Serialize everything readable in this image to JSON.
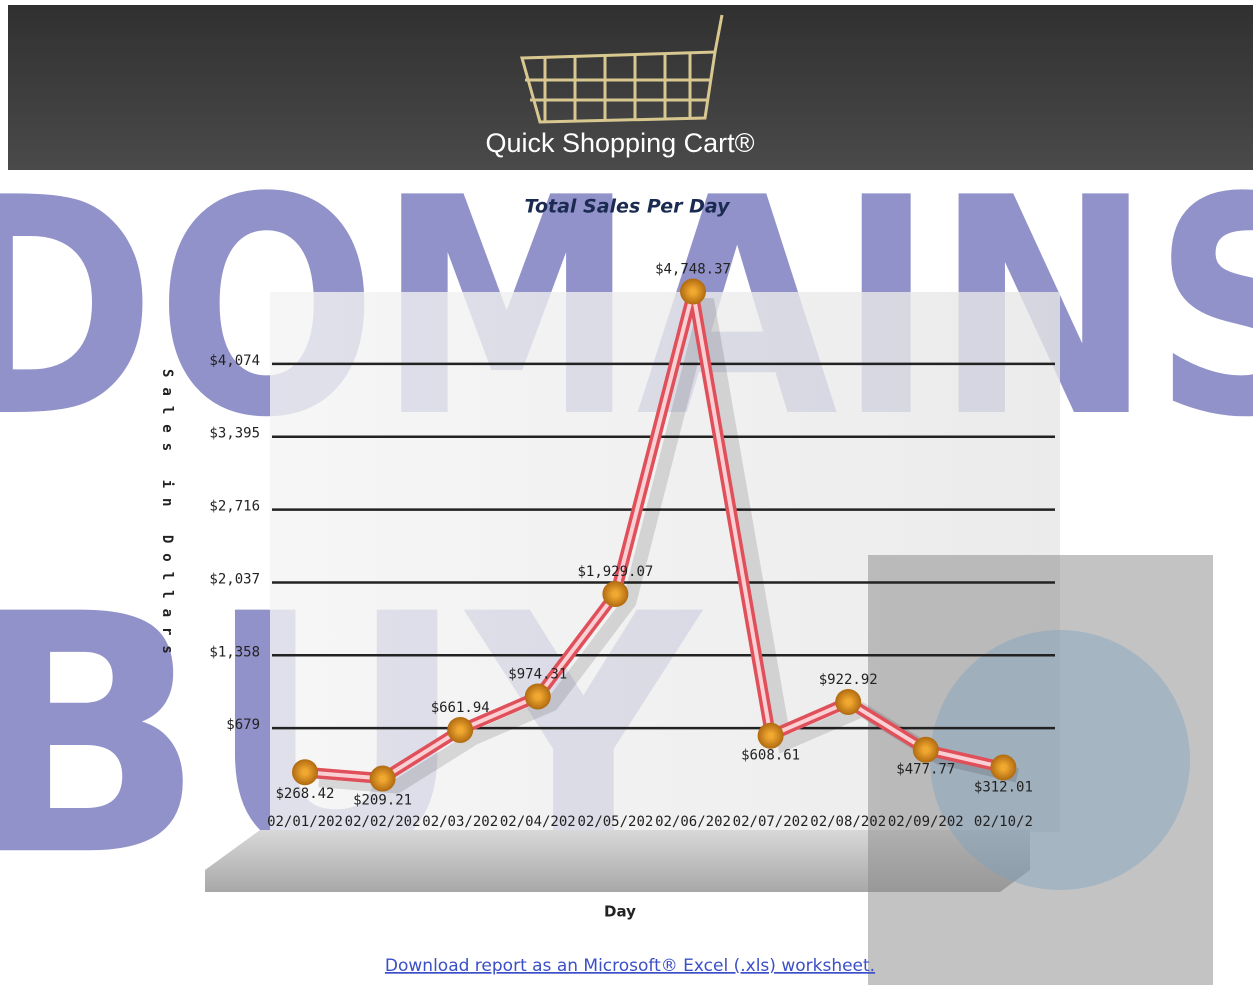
{
  "header": {
    "brand": "Quick Shopping Cart®"
  },
  "chart_data": {
    "type": "line",
    "title": "Total Sales Per Day",
    "x_label": "Day",
    "y_label": "Sales in Dollars",
    "categories": [
      "02/01/202",
      "02/02/202",
      "02/03/202",
      "02/04/202",
      "02/05/202",
      "02/06/202",
      "02/07/202",
      "02/08/202",
      "02/09/202",
      "02/10/2"
    ],
    "series": [
      {
        "name": "Total Sales",
        "color": "#e0505a",
        "values": [
          268.42,
          209.21,
          661.94,
          974.31,
          1929.07,
          4748.37,
          608.61,
          922.92,
          477.77,
          312.01
        ],
        "value_labels": [
          "$268.42",
          "$209.21",
          "$661.94",
          "$974.31",
          "$1,929.07",
          "$4,748.37",
          "$608.61",
          "$922.92",
          "$477.77",
          "$312.01"
        ]
      }
    ],
    "ylim": [
      0,
      4800
    ],
    "yticks": [
      {
        "value": 679,
        "label": "$679"
      },
      {
        "value": 1358,
        "label": "$1,358"
      },
      {
        "value": 2037,
        "label": "$2,037"
      },
      {
        "value": 2716,
        "label": "$2,716"
      },
      {
        "value": 3395,
        "label": "$3,395"
      },
      {
        "value": 4074,
        "label": "$4,074"
      }
    ],
    "grid": true
  },
  "footer": {
    "link": "Download report as an Microsoft® Excel (.xls) worksheet."
  },
  "watermark": [
    "DOMAINS",
    "BUY"
  ]
}
